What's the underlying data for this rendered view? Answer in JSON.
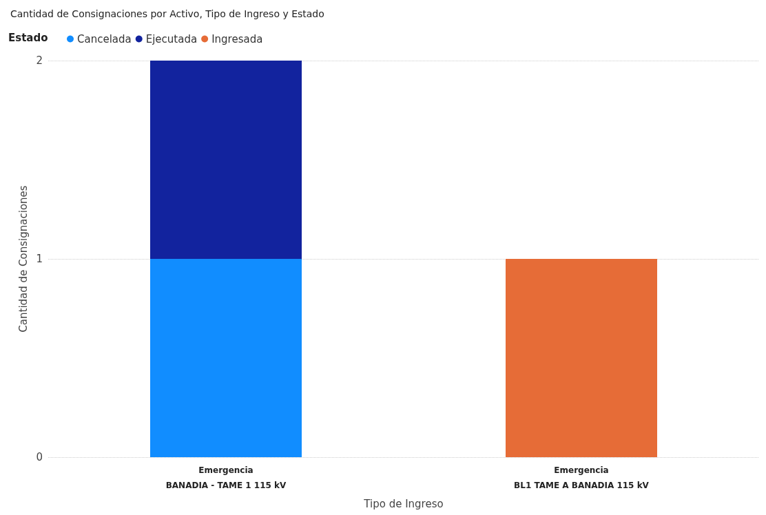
{
  "chart_data": {
    "type": "bar",
    "title": "Cantidad de Consignaciones por Activo, Tipo de Ingreso y Estado",
    "xlabel": "Tipo de Ingreso",
    "ylabel": "Cantidad de Consignaciones",
    "legend_title": "Estado",
    "categories": [
      "Emergencia\nBANADIA - TAME 1 115 kV",
      "Emergencia\nBL1 TAME A BANADIA 115 kV"
    ],
    "series": [
      {
        "name": "Cancelada",
        "color": "#118dff",
        "values": [
          1,
          null
        ]
      },
      {
        "name": "Ejecutada",
        "color": "#12239e",
        "values": [
          1,
          null
        ]
      },
      {
        "name": "Ingresada",
        "color": "#e66c37",
        "values": [
          null,
          1
        ]
      }
    ],
    "stacked": true,
    "ylim": [
      0,
      2
    ],
    "yticks": [
      0,
      1,
      2
    ],
    "grid": "y",
    "legend": "top left"
  }
}
